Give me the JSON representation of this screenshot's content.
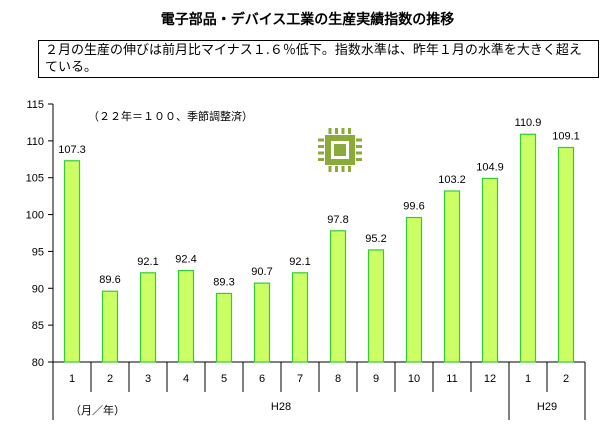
{
  "title": "電子部品・デバイス工業の生産実績指数の推移",
  "callout": "２月の生産の伸びは前月比マイナス１.６％低下。指数水準は、昨年１月の水準を大きく超えている。",
  "note": "（２２年＝１００、季節調整済）",
  "unit_label": "（月／年）",
  "icon": "microchip-icon",
  "colors": {
    "bar_fill": "#ccff66",
    "bar_stroke": "#33cc33",
    "icon": "#8aaa3a"
  },
  "chart_data": {
    "type": "bar",
    "title": "電子部品・デバイス工業の生産実績指数の推移",
    "categories": [
      "1",
      "2",
      "3",
      "4",
      "5",
      "6",
      "7",
      "8",
      "9",
      "10",
      "11",
      "12",
      "1",
      "2"
    ],
    "year_groups": [
      {
        "label": "H28",
        "from": 0,
        "to": 11
      },
      {
        "label": "H29",
        "from": 12,
        "to": 13
      }
    ],
    "values": [
      107.3,
      89.6,
      92.1,
      92.4,
      89.3,
      90.7,
      92.1,
      97.8,
      95.2,
      99.6,
      103.2,
      104.9,
      110.9,
      109.1
    ],
    "value_labels": [
      "107.3",
      "89.6",
      "92.1",
      "92.4",
      "89.3",
      "90.7",
      "92.1",
      "97.8",
      "95.2",
      "99.6",
      "103.2",
      "104.9",
      "110.9",
      "109.1"
    ],
    "ylim": [
      80,
      115
    ],
    "yticks": [
      80,
      85,
      90,
      95,
      100,
      105,
      110,
      115
    ],
    "grid": false,
    "legend": "none"
  }
}
